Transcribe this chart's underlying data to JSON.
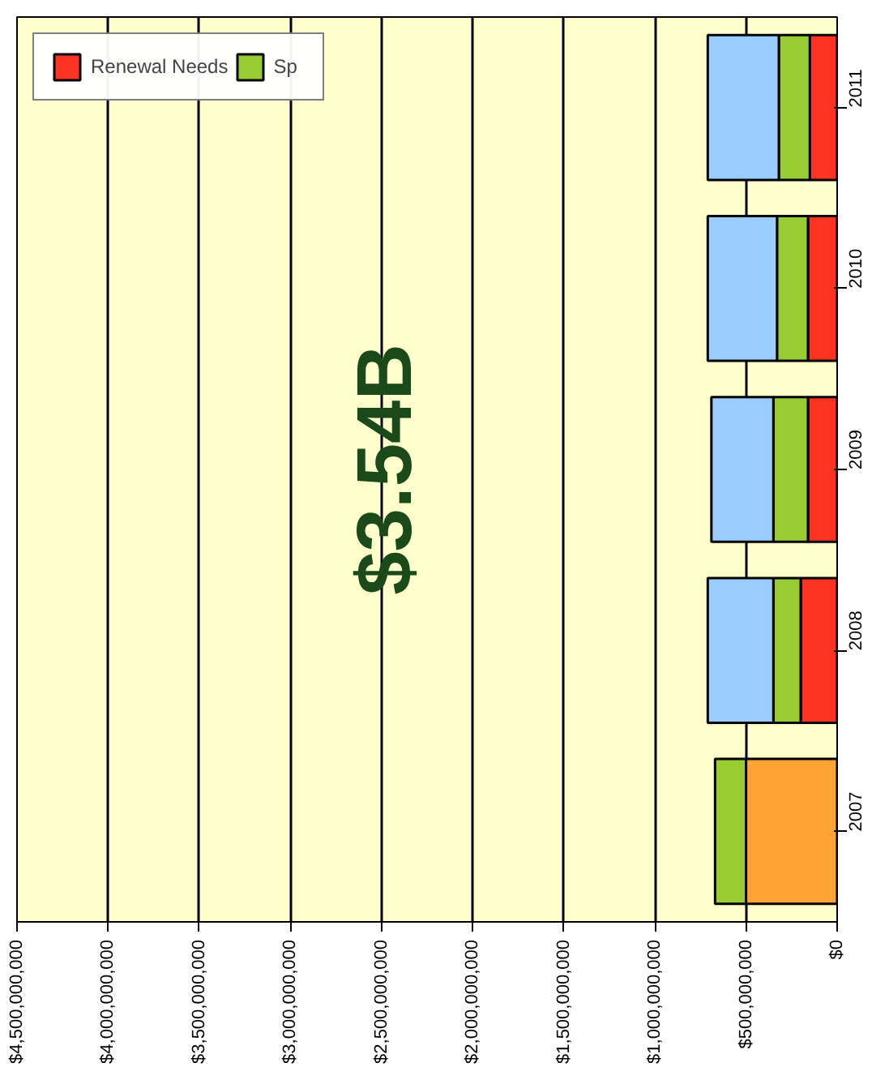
{
  "chart_data": {
    "type": "bar",
    "orientation": "horizontal",
    "stacked": true,
    "categories": [
      "2011",
      "2010",
      "2009",
      "2008",
      "2007"
    ],
    "series": [
      {
        "color": "#ffa333",
        "values": [
          null,
          null,
          null,
          null,
          500000000
        ]
      },
      {
        "name": "Renewal Needs",
        "color": "#ff3322",
        "values": [
          150000000,
          160000000,
          160000000,
          200000000,
          null
        ]
      },
      {
        "name": "Sp",
        "color": "#99cc33",
        "values": [
          170000000,
          170000000,
          190000000,
          150000000,
          170000000
        ]
      },
      {
        "color": "#99ccff",
        "values": [
          390000000,
          380000000,
          340000000,
          360000000,
          null
        ]
      }
    ],
    "xlim": [
      4500000000,
      0
    ],
    "xticks": [
      {
        "value": 4500000000,
        "label": "$4,500,000,000"
      },
      {
        "value": 4000000000,
        "label": "$4,000,000,000"
      },
      {
        "value": 3500000000,
        "label": "$3,500,000,000"
      },
      {
        "value": 3000000000,
        "label": "$3,000,000,000"
      },
      {
        "value": 2500000000,
        "label": "$2,500,000,000"
      },
      {
        "value": 2000000000,
        "label": "$2,000,000,000"
      },
      {
        "value": 1500000000,
        "label": "$1,500,000,000"
      },
      {
        "value": 1000000000,
        "label": "$1,000,000,000"
      },
      {
        "value": 500000000,
        "label": "$500,000,000"
      },
      {
        "value": 0,
        "label": "$0"
      }
    ],
    "grid": "x",
    "legend": "top left",
    "annotations": [
      "$3.54B"
    ]
  }
}
